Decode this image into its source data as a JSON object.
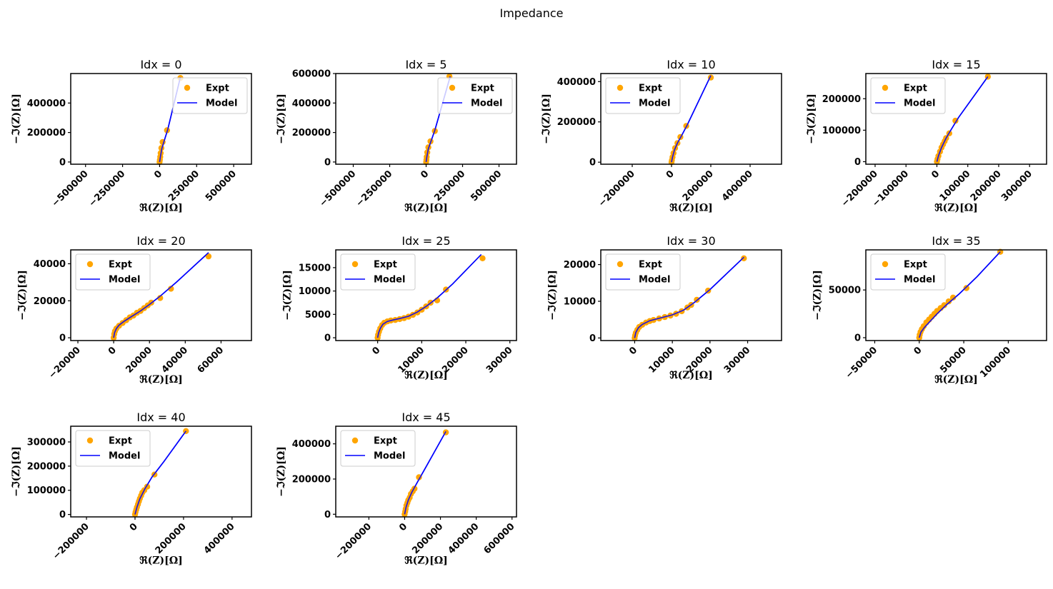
{
  "figure": {
    "title": "Impedance",
    "legend": {
      "expt": "Expt",
      "model": "Model"
    },
    "xlabel": "ℜ(Z)[Ω]",
    "ylabel": "−ℑ(Z)[Ω]",
    "colors": {
      "expt": "#FFA500",
      "model": "#0000FF"
    }
  },
  "chart_data": [
    {
      "type": "scatter",
      "title": "Idx = 0",
      "xlabel": "ℜ(Z)[Ω]",
      "ylabel": "−ℑ(Z)[Ω]",
      "xlim": [
        -600000,
        620000
      ],
      "ylim": [
        -15000,
        600000
      ],
      "xticks": [
        -500000,
        -250000,
        0,
        250000,
        500000
      ],
      "yticks": [
        0,
        200000,
        400000
      ],
      "legend": "upper right",
      "expt": [
        [
          0,
          0
        ],
        [
          2000,
          15000
        ],
        [
          4000,
          35000
        ],
        [
          7000,
          60000
        ],
        [
          12000,
          95000
        ],
        [
          20000,
          135000
        ],
        [
          50000,
          215000
        ],
        [
          140000,
          570000
        ]
      ],
      "model": [
        [
          0,
          0
        ],
        [
          5000,
          35000
        ],
        [
          15000,
          90000
        ],
        [
          30000,
          140000
        ],
        [
          55000,
          220000
        ],
        [
          140000,
          575000
        ]
      ]
    },
    {
      "type": "scatter",
      "title": "Idx = 5",
      "xlabel": "ℜ(Z)[Ω]",
      "ylabel": "−ℑ(Z)[Ω]",
      "xlim": [
        -620000,
        620000
      ],
      "ylim": [
        -15000,
        600000
      ],
      "xticks": [
        -500000,
        -250000,
        0,
        250000,
        500000
      ],
      "yticks": [
        0,
        200000,
        400000,
        600000
      ],
      "legend": "upper right",
      "expt": [
        [
          0,
          0
        ],
        [
          2000,
          15000
        ],
        [
          4000,
          35000
        ],
        [
          8000,
          65000
        ],
        [
          15000,
          100000
        ],
        [
          30000,
          140000
        ],
        [
          60000,
          210000
        ],
        [
          160000,
          580000
        ]
      ],
      "model": [
        [
          0,
          0
        ],
        [
          5000,
          35000
        ],
        [
          15000,
          90000
        ],
        [
          35000,
          145000
        ],
        [
          60000,
          215000
        ],
        [
          165000,
          580000
        ]
      ]
    },
    {
      "type": "scatter",
      "title": "Idx = 10",
      "xlabel": "ℜ(Z)[Ω]",
      "ylabel": "−ℑ(Z)[Ω]",
      "xlim": [
        -360000,
        560000
      ],
      "ylim": [
        -10000,
        440000
      ],
      "xticks": [
        -200000,
        0,
        200000,
        400000
      ],
      "yticks": [
        0,
        200000,
        400000
      ],
      "legend": "upper left",
      "expt": [
        [
          0,
          0
        ],
        [
          2000,
          10000
        ],
        [
          5000,
          25000
        ],
        [
          10000,
          45000
        ],
        [
          18000,
          70000
        ],
        [
          30000,
          95000
        ],
        [
          45000,
          125000
        ],
        [
          75000,
          180000
        ],
        [
          200000,
          420000
        ]
      ],
      "model": [
        [
          0,
          0
        ],
        [
          5000,
          25000
        ],
        [
          15000,
          60000
        ],
        [
          30000,
          95000
        ],
        [
          50000,
          130000
        ],
        [
          80000,
          185000
        ],
        [
          200000,
          430000
        ]
      ]
    },
    {
      "type": "scatter",
      "title": "Idx = 15",
      "xlabel": "ℜ(Z)[Ω]",
      "ylabel": "−ℑ(Z)[Ω]",
      "xlim": [
        -230000,
        355000
      ],
      "ylim": [
        -8000,
        280000
      ],
      "xticks": [
        -200000,
        -100000,
        0,
        100000,
        200000,
        300000
      ],
      "yticks": [
        0,
        100000,
        200000
      ],
      "legend": "upper left",
      "expt": [
        [
          0,
          0
        ],
        [
          2000,
          8000
        ],
        [
          5000,
          18000
        ],
        [
          10000,
          32000
        ],
        [
          15000,
          45000
        ],
        [
          20000,
          55000
        ],
        [
          25000,
          65000
        ],
        [
          30000,
          75000
        ],
        [
          40000,
          90000
        ],
        [
          60000,
          130000
        ],
        [
          165000,
          270000
        ]
      ],
      "model": [
        [
          0,
          0
        ],
        [
          5000,
          18000
        ],
        [
          15000,
          45000
        ],
        [
          30000,
          75000
        ],
        [
          45000,
          100000
        ],
        [
          70000,
          140000
        ],
        [
          165000,
          270000
        ]
      ]
    },
    {
      "type": "scatter",
      "title": "Idx = 20",
      "xlabel": "ℜ(Z)[Ω]",
      "ylabel": "−ℑ(Z)[Ω]",
      "xlim": [
        -24000,
        77000
      ],
      "ylim": [
        -1500,
        47500
      ],
      "xticks": [
        -20000,
        0,
        20000,
        40000,
        60000
      ],
      "yticks": [
        0,
        20000,
        40000
      ],
      "legend": "upper left",
      "expt": [
        [
          0,
          0
        ],
        [
          300,
          2000
        ],
        [
          700,
          3500
        ],
        [
          1500,
          5000
        ],
        [
          3000,
          6500
        ],
        [
          5000,
          8000
        ],
        [
          7000,
          9500
        ],
        [
          9000,
          11000
        ],
        [
          11000,
          12000
        ],
        [
          13000,
          13500
        ],
        [
          15000,
          14500
        ],
        [
          17000,
          16000
        ],
        [
          19000,
          17500
        ],
        [
          21000,
          19000
        ],
        [
          26000,
          21500
        ],
        [
          32000,
          26500
        ],
        [
          53000,
          44000
        ]
      ],
      "model": [
        [
          0,
          0
        ],
        [
          500,
          2800
        ],
        [
          1500,
          5000
        ],
        [
          3000,
          6800
        ],
        [
          6000,
          9000
        ],
        [
          10000,
          11500
        ],
        [
          15000,
          14500
        ],
        [
          20000,
          18000
        ],
        [
          26000,
          22500
        ],
        [
          35000,
          30000
        ],
        [
          53000,
          46000
        ]
      ]
    },
    {
      "type": "scatter",
      "title": "Idx = 25",
      "xlabel": "ℜ(Z)[Ω]",
      "ylabel": "−ℑ(Z)[Ω]",
      "xlim": [
        -9500,
        31500
      ],
      "ylim": [
        -600,
        18800
      ],
      "xticks": [
        0,
        10000,
        20000,
        30000
      ],
      "yticks": [
        0,
        5000,
        10000,
        15000
      ],
      "legend": "upper left",
      "expt": [
        [
          0,
          0
        ],
        [
          100,
          600
        ],
        [
          300,
          1300
        ],
        [
          600,
          2000
        ],
        [
          1000,
          2700
        ],
        [
          1500,
          3200
        ],
        [
          2200,
          3500
        ],
        [
          3000,
          3700
        ],
        [
          4000,
          3800
        ],
        [
          5000,
          4000
        ],
        [
          6000,
          4200
        ],
        [
          7000,
          4500
        ],
        [
          8000,
          4900
        ],
        [
          9000,
          5400
        ],
        [
          10000,
          6000
        ],
        [
          11000,
          6700
        ],
        [
          12000,
          7500
        ],
        [
          13500,
          8000
        ],
        [
          15500,
          10300
        ],
        [
          23800,
          17000
        ]
      ],
      "model": [
        [
          0,
          0
        ],
        [
          200,
          1000
        ],
        [
          600,
          2000
        ],
        [
          1200,
          2900
        ],
        [
          2200,
          3500
        ],
        [
          3500,
          3800
        ],
        [
          5000,
          4100
        ],
        [
          7000,
          4600
        ],
        [
          9000,
          5500
        ],
        [
          11000,
          6700
        ],
        [
          13500,
          8500
        ],
        [
          17000,
          11500
        ],
        [
          23500,
          17800
        ]
      ]
    },
    {
      "type": "scatter",
      "title": "Idx = 30",
      "xlabel": "ℜ(Z)[Ω]",
      "ylabel": "−ℑ(Z)[Ω]",
      "xlim": [
        -9000,
        39000
      ],
      "ylim": [
        -700,
        24000
      ],
      "xticks": [
        0,
        10000,
        20000,
        30000
      ],
      "yticks": [
        0,
        10000,
        20000
      ],
      "legend": "upper left",
      "expt": [
        [
          0,
          0
        ],
        [
          100,
          700
        ],
        [
          300,
          1400
        ],
        [
          700,
          2200
        ],
        [
          1200,
          3000
        ],
        [
          2000,
          3600
        ],
        [
          3000,
          4200
        ],
        [
          4000,
          4600
        ],
        [
          5000,
          4900
        ],
        [
          6500,
          5300
        ],
        [
          8000,
          5700
        ],
        [
          9500,
          6100
        ],
        [
          11000,
          6600
        ],
        [
          12500,
          7300
        ],
        [
          14000,
          8300
        ],
        [
          15000,
          9000
        ],
        [
          16500,
          10400
        ],
        [
          19500,
          12900
        ],
        [
          29000,
          21700
        ]
      ],
      "model": [
        [
          0,
          0
        ],
        [
          300,
          1500
        ],
        [
          1000,
          2800
        ],
        [
          2000,
          3700
        ],
        [
          4000,
          4700
        ],
        [
          7000,
          5500
        ],
        [
          10000,
          6300
        ],
        [
          13000,
          7600
        ],
        [
          16000,
          9800
        ],
        [
          20000,
          13200
        ],
        [
          29000,
          22000
        ]
      ]
    },
    {
      "type": "scatter",
      "title": "Idx = 35",
      "xlabel": "ℜ(Z)[Ω]",
      "ylabel": "−ℑ(Z)[Ω]",
      "xlim": [
        -60000,
        143000
      ],
      "ylim": [
        -3000,
        92000
      ],
      "xticks": [
        -50000,
        0,
        50000,
        100000
      ],
      "yticks": [
        0,
        50000
      ],
      "legend": "upper left",
      "expt": [
        [
          0,
          0
        ],
        [
          500,
          3000
        ],
        [
          1500,
          6000
        ],
        [
          3000,
          9000
        ],
        [
          5000,
          12000
        ],
        [
          8000,
          16000
        ],
        [
          11000,
          19000
        ],
        [
          14000,
          22000
        ],
        [
          17000,
          25000
        ],
        [
          20000,
          28000
        ],
        [
          24000,
          31000
        ],
        [
          28000,
          34000
        ],
        [
          33000,
          38000
        ],
        [
          38000,
          42000
        ],
        [
          53000,
          52000
        ],
        [
          91000,
          90000
        ]
      ],
      "model": [
        [
          0,
          0
        ],
        [
          2000,
          6000
        ],
        [
          6000,
          11000
        ],
        [
          12000,
          17000
        ],
        [
          20000,
          25000
        ],
        [
          30000,
          34000
        ],
        [
          45000,
          46000
        ],
        [
          65000,
          64000
        ],
        [
          91000,
          90000
        ]
      ]
    },
    {
      "type": "scatter",
      "title": "Idx = 40",
      "xlabel": "ℜ(Z)[Ω]",
      "ylabel": "−ℑ(Z)[Ω]",
      "xlim": [
        -265000,
        480000
      ],
      "ylim": [
        -10000,
        365000
      ],
      "xticks": [
        -200000,
        0,
        200000,
        400000
      ],
      "yticks": [
        0,
        100000,
        200000,
        300000
      ],
      "legend": "upper left",
      "expt": [
        [
          0,
          0
        ],
        [
          2000,
          10000
        ],
        [
          5000,
          20000
        ],
        [
          8000,
          30000
        ],
        [
          12000,
          42000
        ],
        [
          16000,
          54000
        ],
        [
          20000,
          66000
        ],
        [
          25000,
          78000
        ],
        [
          30000,
          90000
        ],
        [
          38000,
          100000
        ],
        [
          50000,
          115000
        ],
        [
          80000,
          165000
        ],
        [
          210000,
          345000
        ]
      ],
      "model": [
        [
          0,
          0
        ],
        [
          8000,
          30000
        ],
        [
          20000,
          65000
        ],
        [
          40000,
          105000
        ],
        [
          70000,
          155000
        ],
        [
          120000,
          220000
        ],
        [
          210000,
          345000
        ]
      ]
    },
    {
      "type": "scatter",
      "title": "Idx = 45",
      "xlabel": "ℜ(Z)[Ω]",
      "ylabel": "−ℑ(Z)[Ω]",
      "xlim": [
        -385000,
        625000
      ],
      "ylim": [
        -15000,
        500000
      ],
      "xticks": [
        -200000,
        0,
        200000,
        400000,
        600000
      ],
      "yticks": [
        0,
        200000,
        400000
      ],
      "legend": "upper left",
      "expt": [
        [
          0,
          0
        ],
        [
          3000,
          15000
        ],
        [
          6000,
          30000
        ],
        [
          10000,
          50000
        ],
        [
          15000,
          65000
        ],
        [
          20000,
          80000
        ],
        [
          28000,
          95000
        ],
        [
          35000,
          115000
        ],
        [
          45000,
          130000
        ],
        [
          55000,
          145000
        ],
        [
          80000,
          210000
        ],
        [
          230000,
          465000
        ]
      ],
      "model": [
        [
          0,
          0
        ],
        [
          8000,
          40000
        ],
        [
          20000,
          80000
        ],
        [
          40000,
          125000
        ],
        [
          70000,
          180000
        ],
        [
          120000,
          270000
        ],
        [
          230000,
          470000
        ]
      ]
    }
  ]
}
